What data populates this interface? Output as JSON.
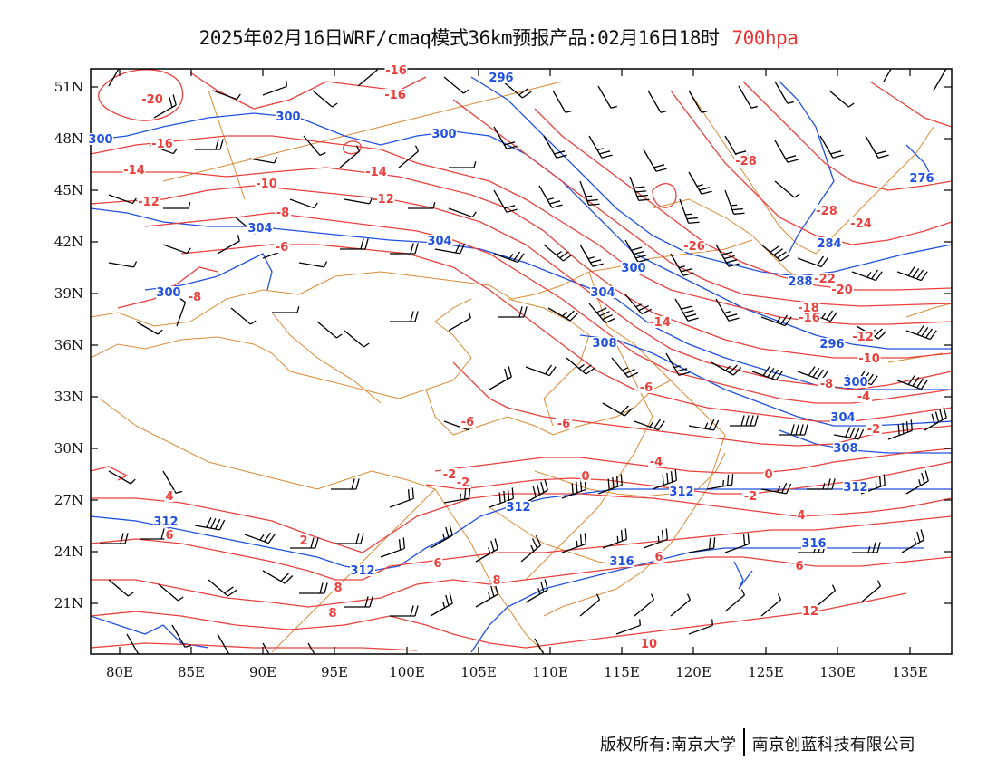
{
  "title": {
    "main": "2025年02月16日WRF/cmaq模式36km预报产品:02月16日18时",
    "level": "700hpa"
  },
  "axes": {
    "lat_labels": [
      "51N",
      "48N",
      "45N",
      "42N",
      "39N",
      "36N",
      "33N",
      "30N",
      "27N",
      "24N",
      "21N"
    ],
    "lon_labels": [
      "80E",
      "85E",
      "90E",
      "95E",
      "100E",
      "105E",
      "110E",
      "115E",
      "120E",
      "125E",
      "130E",
      "135E"
    ]
  },
  "footer": {
    "copyright": "版权所有:南京大学",
    "company": "南京创蓝科技有限公司"
  },
  "colors": {
    "temperature": "#e8403c",
    "height": "#2050e0",
    "border": "#d98a35",
    "barb": "#000000"
  },
  "temperature_labels": [
    "-20",
    "-16",
    "-16",
    "-16",
    "-14",
    "-14",
    "-12",
    "-12",
    "-10",
    "-8",
    "-8",
    "-6",
    "-28",
    "-28",
    "-26",
    "-24",
    "-22",
    "-20",
    "-18",
    "-16",
    "-14",
    "-12",
    "-10",
    "-8",
    "-6",
    "-6",
    "-6",
    "-4",
    "-4",
    "-2",
    "-2",
    "-2",
    "0",
    "0",
    "2",
    "-2",
    "4",
    "4",
    "6",
    "6",
    "6",
    "6",
    "8",
    "8",
    "8",
    "12",
    "10"
  ],
  "height_labels": [
    "296",
    "300",
    "300",
    "300",
    "304",
    "304",
    "300",
    "304",
    "300",
    "308",
    "296",
    "288",
    "284",
    "276",
    "312",
    "312",
    "312",
    "312",
    "316",
    "316",
    "304",
    "300",
    "308",
    "312"
  ]
}
